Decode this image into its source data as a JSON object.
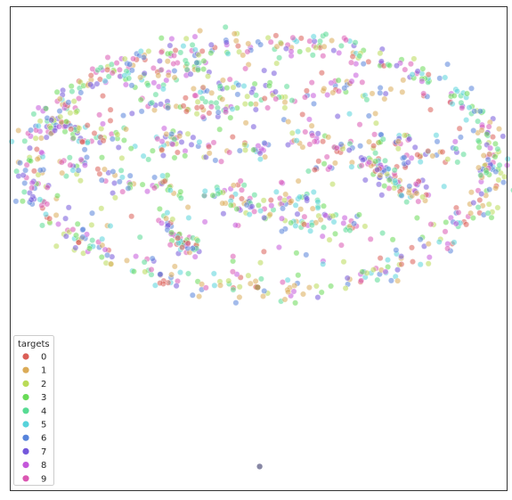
{
  "chart_data": {
    "type": "scatter",
    "title": "",
    "xlabel": "",
    "ylabel": "",
    "xlim": [
      0,
      1
    ],
    "ylim": [
      0,
      1
    ],
    "grid": false,
    "axis_ticks": false,
    "legend": {
      "title": "targets",
      "placement": "lower-left",
      "entries": [
        "0",
        "1",
        "2",
        "3",
        "4",
        "5",
        "6",
        "7",
        "8",
        "9"
      ]
    },
    "point_alpha": 0.55,
    "series_colors": [
      "#db5f57",
      "#dbab57",
      "#b9db57",
      "#69db57",
      "#57db93",
      "#57d3db",
      "#5784db",
      "#7457db",
      "#c457db",
      "#db57b2"
    ],
    "structure": {
      "ellipse_ring": {
        "cx": 0.506,
        "cy": 0.675,
        "rx": 0.468,
        "ry": 0.255
      },
      "interior_strands": [
        {
          "x0": 0.15,
          "y0": 0.85,
          "x1": 0.4,
          "y1": 0.87
        },
        {
          "x0": 0.38,
          "y0": 0.83,
          "x1": 0.76,
          "y1": 0.82
        },
        {
          "x0": 0.07,
          "y0": 0.75,
          "x1": 0.23,
          "y1": 0.72
        },
        {
          "x0": 0.25,
          "y0": 0.79,
          "x1": 0.55,
          "y1": 0.8
        },
        {
          "x0": 0.29,
          "y0": 0.72,
          "x1": 0.52,
          "y1": 0.7
        },
        {
          "x0": 0.55,
          "y0": 0.72,
          "x1": 0.82,
          "y1": 0.71
        },
        {
          "x0": 0.1,
          "y0": 0.67,
          "x1": 0.35,
          "y1": 0.62
        },
        {
          "x0": 0.38,
          "y0": 0.61,
          "x1": 0.62,
          "y1": 0.59
        },
        {
          "x0": 0.6,
          "y0": 0.66,
          "x1": 0.92,
          "y1": 0.7
        },
        {
          "x0": 0.74,
          "y0": 0.66,
          "x1": 0.84,
          "y1": 0.6
        },
        {
          "x0": 0.3,
          "y0": 0.56,
          "x1": 0.38,
          "y1": 0.48
        },
        {
          "x0": 0.42,
          "y0": 0.58,
          "x1": 0.7,
          "y1": 0.55
        }
      ],
      "outliers": [
        {
          "x": 0.498,
          "y": 0.42,
          "target": "1"
        },
        {
          "x": 0.502,
          "y": 0.049,
          "target": "7"
        }
      ]
    }
  }
}
